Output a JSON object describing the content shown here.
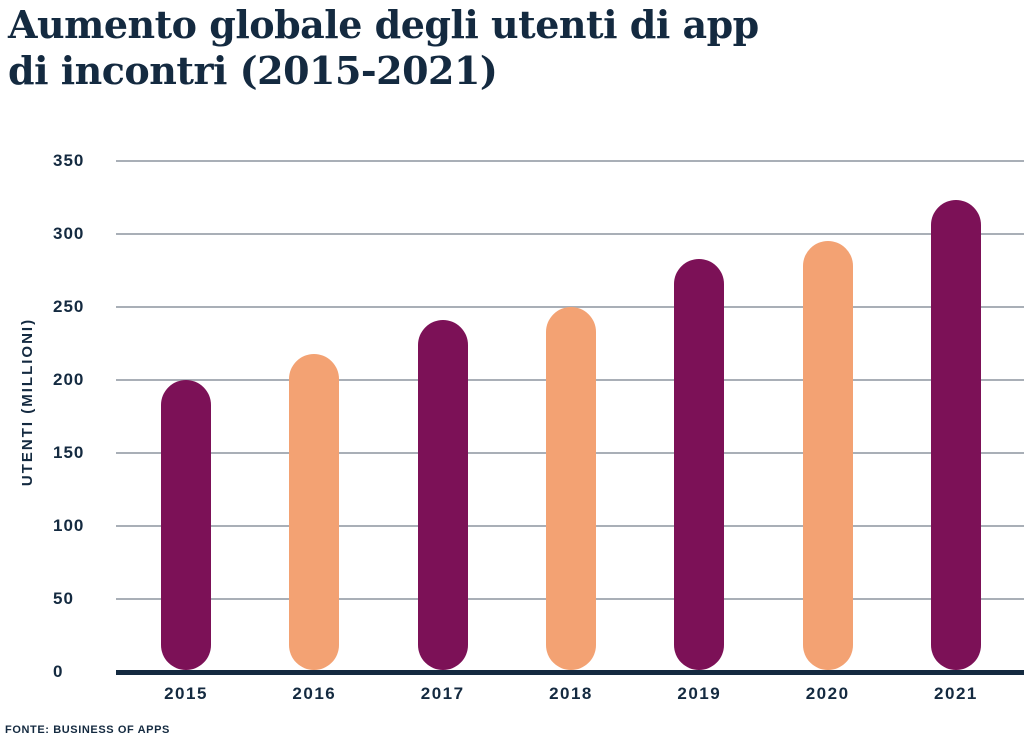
{
  "title": {
    "line1": "Aumento globale degli utenti di app",
    "line2": "di incontri (2015-2021)"
  },
  "source": "FONTE: BUSINESS OF APPS",
  "colors": {
    "magenta": "#7C1157",
    "peach": "#F3A273",
    "navy": "#142A40",
    "gridline": "#A9AFB7",
    "background": "#FFFFFF"
  },
  "chart_data": {
    "type": "bar",
    "title": "Aumento globale degli utenti di app di incontri (2015-2021)",
    "categories": [
      "2015",
      "2016",
      "2017",
      "2018",
      "2019",
      "2020",
      "2021"
    ],
    "values": [
      200,
      218,
      241,
      250,
      283,
      295,
      323
    ],
    "xlabel": "",
    "ylabel": "UTENTI (MILLIONI)",
    "ylim": [
      0,
      350
    ],
    "yticks": [
      0,
      50,
      100,
      150,
      200,
      250,
      300,
      350
    ],
    "grid": true,
    "legend": false,
    "bar_colors": [
      "#7C1157",
      "#F3A273",
      "#7C1157",
      "#F3A273",
      "#7C1157",
      "#F3A273",
      "#7C1157"
    ],
    "source": "FONTE: BUSINESS OF APPS"
  }
}
